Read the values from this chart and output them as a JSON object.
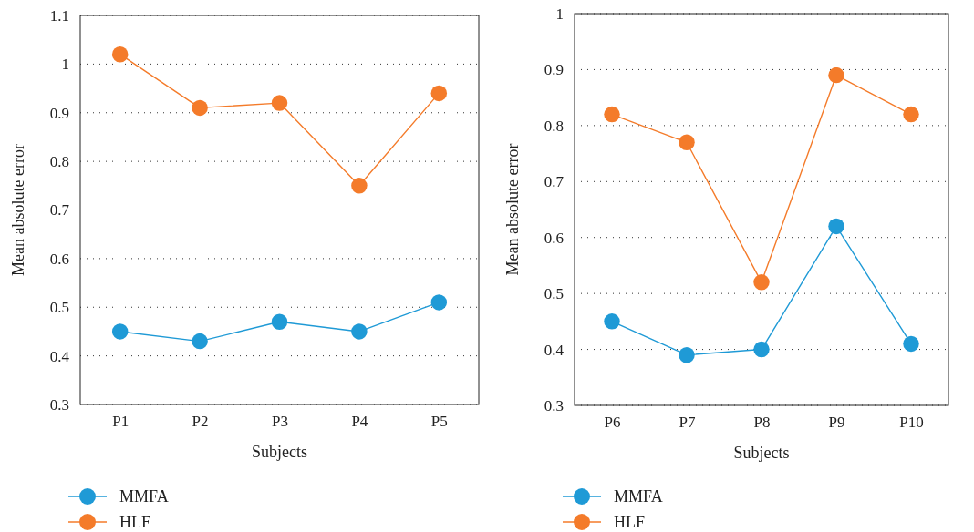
{
  "chart_data": [
    {
      "type": "line",
      "xlabel": "Subjects",
      "ylabel": "Mean absolute error",
      "categories": [
        "P1",
        "P2",
        "P3",
        "P4",
        "P5"
      ],
      "ylim": [
        0.3,
        1.1
      ],
      "yticks": [
        0.3,
        0.4,
        0.5,
        0.6,
        0.7,
        0.8,
        0.9,
        1,
        1.1
      ],
      "grid": "y",
      "legend": "bottom",
      "marker": "circle",
      "line_style": "solid",
      "series": [
        {
          "name": "MMFA",
          "color": "#1f9ad6",
          "values": [
            0.45,
            0.43,
            0.47,
            0.45,
            0.51
          ]
        },
        {
          "name": "HLF",
          "color": "#f47b2a",
          "values": [
            1.02,
            0.91,
            0.92,
            0.75,
            0.94
          ]
        }
      ]
    },
    {
      "type": "line",
      "xlabel": "Subjects",
      "ylabel": "Mean absolute error",
      "categories": [
        "P6",
        "P7",
        "P8",
        "P9",
        "P10"
      ],
      "ylim": [
        0.3,
        1
      ],
      "yticks": [
        0.3,
        0.4,
        0.5,
        0.6,
        0.7,
        0.8,
        0.9,
        1
      ],
      "grid": "y",
      "legend": "bottom",
      "marker": "circle",
      "line_style": "solid",
      "series": [
        {
          "name": "MMFA",
          "color": "#1f9ad6",
          "values": [
            0.45,
            0.39,
            0.4,
            0.62,
            0.41
          ]
        },
        {
          "name": "HLF",
          "color": "#f47b2a",
          "values": [
            0.82,
            0.77,
            0.52,
            0.89,
            0.82
          ]
        }
      ]
    }
  ]
}
